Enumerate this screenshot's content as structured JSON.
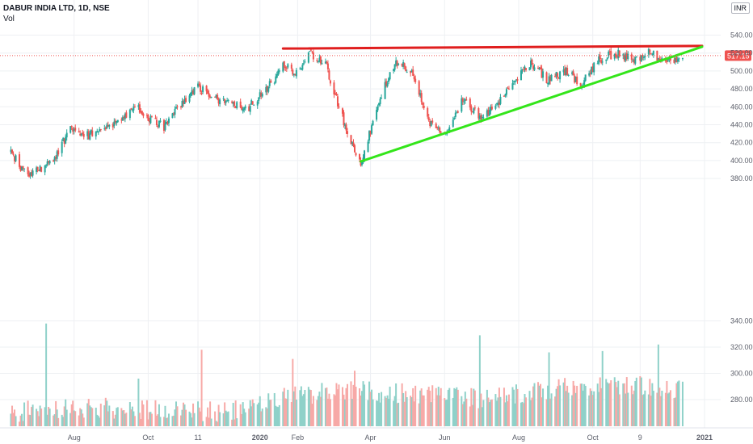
{
  "header": {
    "title": "DABUR INDIA LTD, 1D, NSE",
    "volume_label": "Vol",
    "currency": "INR"
  },
  "colors": {
    "up": "#26a69a",
    "down": "#ef5350",
    "up_volume": "#8fd1c9",
    "down_volume": "#f7a9a7",
    "resistance": "#e01e1e",
    "support": "#33e51a",
    "grid": "#eef0f3",
    "last_price_bg": "#ef5350",
    "axis_text": "#5d606b"
  },
  "chart_data": {
    "type": "candlestick",
    "price_axis": {
      "ticks": [
        380,
        400,
        420,
        440,
        460,
        480,
        500,
        520,
        540
      ],
      "range": [
        362,
        546
      ]
    },
    "volume_axis": {
      "ticks": [
        280,
        300,
        320,
        340
      ]
    },
    "x_axis": {
      "ticks": [
        "Aug",
        "Oct",
        "11",
        "2020",
        "Feb",
        "Apr",
        "Jun",
        "Aug",
        "Oct",
        "9",
        "2021"
      ]
    },
    "last_price": {
      "value": 517.15,
      "label": "517.15"
    },
    "trendlines": [
      {
        "name": "resistance",
        "from": {
          "date": "2020-01-20",
          "price": 525
        },
        "to": {
          "date": "2020-12-30",
          "price": 528
        }
      },
      {
        "name": "support",
        "from": {
          "date": "2020-03-24",
          "price": 399
        },
        "to": {
          "date": "2020-12-30",
          "price": 527
        }
      }
    ],
    "price_path": [
      [
        "2019-06-10",
        410
      ],
      [
        "2019-06-24",
        380
      ],
      [
        "2019-07-15",
        402
      ],
      [
        "2019-07-29",
        434
      ],
      [
        "2019-08-12",
        428
      ],
      [
        "2019-08-26",
        434
      ],
      [
        "2019-09-09",
        445
      ],
      [
        "2019-09-20",
        462
      ],
      [
        "2019-10-01",
        448
      ],
      [
        "2019-10-14",
        438
      ],
      [
        "2019-10-28",
        462
      ],
      [
        "2019-11-11",
        482
      ],
      [
        "2019-11-25",
        470
      ],
      [
        "2019-12-09",
        462
      ],
      [
        "2019-12-23",
        460
      ],
      [
        "2020-01-06",
        478
      ],
      [
        "2020-01-20",
        505
      ],
      [
        "2020-02-03",
        498
      ],
      [
        "2020-02-10",
        520
      ],
      [
        "2020-02-24",
        510
      ],
      [
        "2020-03-02",
        476
      ],
      [
        "2020-03-16",
        420
      ],
      [
        "2020-03-24",
        395
      ],
      [
        "2020-04-07",
        462
      ],
      [
        "2020-04-21",
        510
      ],
      [
        "2020-05-05",
        500
      ],
      [
        "2020-05-19",
        444
      ],
      [
        "2020-06-02",
        432
      ],
      [
        "2020-06-16",
        468
      ],
      [
        "2020-06-30",
        448
      ],
      [
        "2020-07-14",
        460
      ],
      [
        "2020-07-28",
        490
      ],
      [
        "2020-08-11",
        508
      ],
      [
        "2020-08-25",
        490
      ],
      [
        "2020-09-08",
        500
      ],
      [
        "2020-09-22",
        486
      ],
      [
        "2020-10-06",
        512
      ],
      [
        "2020-10-20",
        520
      ],
      [
        "2020-11-03",
        512
      ],
      [
        "2020-11-17",
        522
      ],
      [
        "2020-11-30",
        510
      ],
      [
        "2020-12-14",
        517.15
      ]
    ],
    "volume_profile": [
      [
        "2019-06-10",
        268
      ],
      [
        "2019-08-01",
        272
      ],
      [
        "2019-10-01",
        270
      ],
      [
        "2019-12-01",
        268
      ],
      [
        "2020-01-20",
        280
      ],
      [
        "2020-03-10",
        285
      ],
      [
        "2020-05-01",
        282
      ],
      [
        "2020-07-01",
        278
      ],
      [
        "2020-09-01",
        286
      ],
      [
        "2020-11-01",
        288
      ],
      [
        "2020-12-14",
        286
      ]
    ],
    "volume_spikes": [
      [
        "2019-07-09",
        338
      ],
      [
        "2019-09-23",
        296
      ],
      [
        "2019-11-14",
        318
      ],
      [
        "2020-01-28",
        311
      ],
      [
        "2020-03-19",
        302
      ],
      [
        "2020-06-30",
        329
      ],
      [
        "2020-08-26",
        316
      ],
      [
        "2020-10-09",
        317
      ],
      [
        "2020-11-24",
        322
      ]
    ]
  }
}
